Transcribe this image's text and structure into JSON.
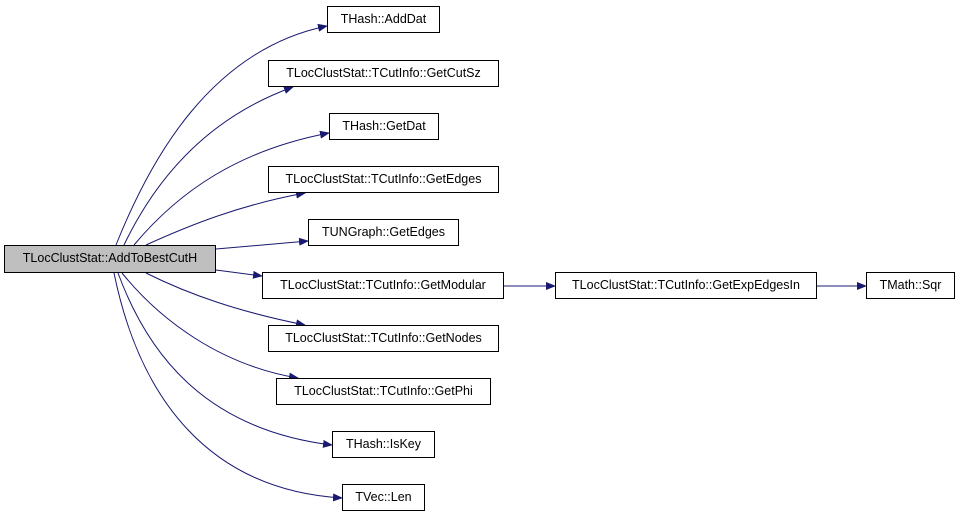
{
  "graph": {
    "edge_color": "#191970",
    "root_fill": "#bfbfbf",
    "root": {
      "label": "TLocClustStat::AddToBestCutH"
    },
    "nodes": [
      {
        "id": "adddat",
        "label": "THash::AddDat"
      },
      {
        "id": "getcutsz",
        "label": "TLocClustStat::TCutInfo::GetCutSz"
      },
      {
        "id": "getdat",
        "label": "THash::GetDat"
      },
      {
        "id": "getedges-cut",
        "label": "TLocClustStat::TCutInfo::GetEdges"
      },
      {
        "id": "getedges-ung",
        "label": "TUNGraph::GetEdges"
      },
      {
        "id": "getmodular",
        "label": "TLocClustStat::TCutInfo::GetModular"
      },
      {
        "id": "getexpedgesin",
        "label": "TLocClustStat::TCutInfo::GetExpEdgesIn"
      },
      {
        "id": "sqr",
        "label": "TMath::Sqr"
      },
      {
        "id": "getnodes",
        "label": "TLocClustStat::TCutInfo::GetNodes"
      },
      {
        "id": "getphi",
        "label": "TLocClustStat::TCutInfo::GetPhi"
      },
      {
        "id": "iskey",
        "label": "THash::IsKey"
      },
      {
        "id": "len",
        "label": "TVec::Len"
      }
    ],
    "edges": [
      [
        "root",
        "adddat"
      ],
      [
        "root",
        "getcutsz"
      ],
      [
        "root",
        "getdat"
      ],
      [
        "root",
        "getedges-cut"
      ],
      [
        "root",
        "getedges-ung"
      ],
      [
        "root",
        "getmodular"
      ],
      [
        "getmodular",
        "getexpedgesin"
      ],
      [
        "getexpedgesin",
        "sqr"
      ],
      [
        "root",
        "getnodes"
      ],
      [
        "root",
        "getphi"
      ],
      [
        "root",
        "iskey"
      ],
      [
        "root",
        "len"
      ]
    ]
  }
}
